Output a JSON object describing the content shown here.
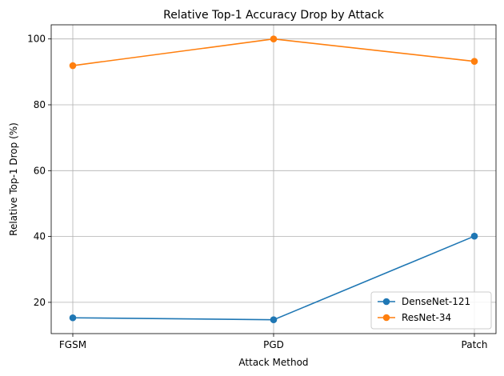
{
  "chart_data": {
    "type": "line",
    "title": "Relative Top-1 Accuracy Drop by Attack",
    "xlabel": "Attack Method",
    "ylabel": "Relative Top-1 Drop (%)",
    "categories": [
      "FGSM",
      "PGD",
      "Patch"
    ],
    "ylim": [
      10.5,
      104.3
    ],
    "yticks": [
      20,
      40,
      60,
      80,
      100
    ],
    "grid": true,
    "legend_position": "lower-right",
    "series": [
      {
        "name": "DenseNet-121",
        "color": "#1f77b4",
        "values": [
          15.3,
          14.7,
          40.1
        ]
      },
      {
        "name": "ResNet-34",
        "color": "#ff7f0e",
        "values": [
          91.9,
          100.0,
          93.2
        ]
      }
    ]
  }
}
